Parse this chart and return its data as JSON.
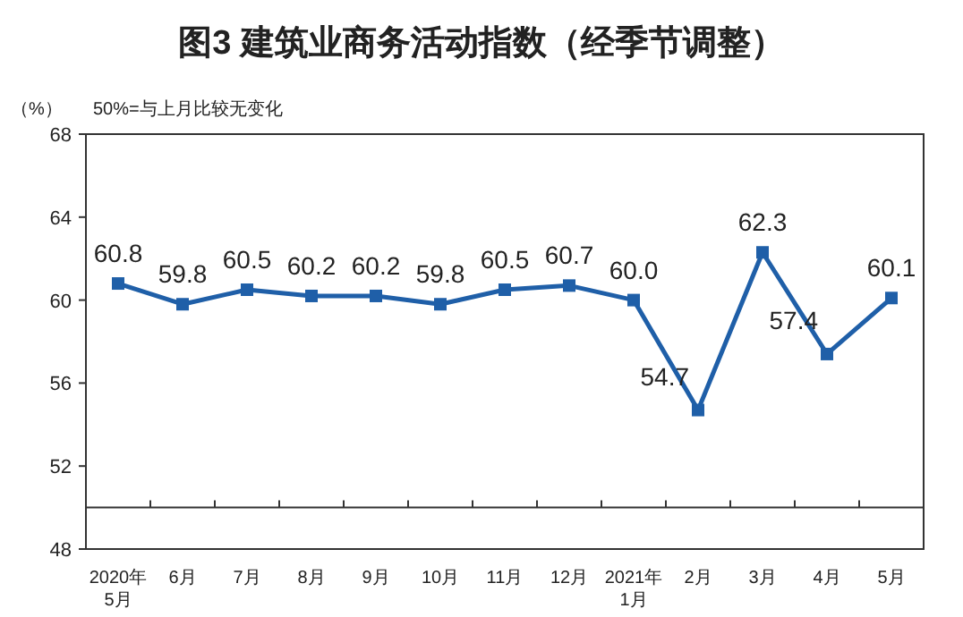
{
  "chart_data": {
    "type": "line",
    "title": "图3  建筑业商务活动指数（经季节调整）",
    "ylabel": "（%）",
    "annotations": [
      "50%=与上月比较无变化"
    ],
    "categories": [
      "2020年\n5月",
      "6月",
      "7月",
      "8月",
      "9月",
      "10月",
      "11月",
      "12月",
      "2021年\n1月",
      "2月",
      "3月",
      "4月",
      "5月"
    ],
    "series": [
      {
        "color": "#1f5fa8",
        "values": [
          60.8,
          59.8,
          60.5,
          60.2,
          60.2,
          59.8,
          60.5,
          60.7,
          60.0,
          54.7,
          62.3,
          57.4,
          60.1
        ],
        "value_labels": [
          "60.8",
          "59.8",
          "60.5",
          "60.2",
          "60.2",
          "59.8",
          "60.5",
          "60.7",
          "60.0",
          "54.7",
          "62.3",
          "57.4",
          "60.1"
        ]
      }
    ],
    "ylim": [
      48,
      68
    ],
    "yticks": [
      48,
      52,
      56,
      60,
      64,
      68
    ],
    "ref_lines": [
      {
        "axis": "y",
        "value": 50
      }
    ],
    "marker": "square",
    "grid": false
  }
}
